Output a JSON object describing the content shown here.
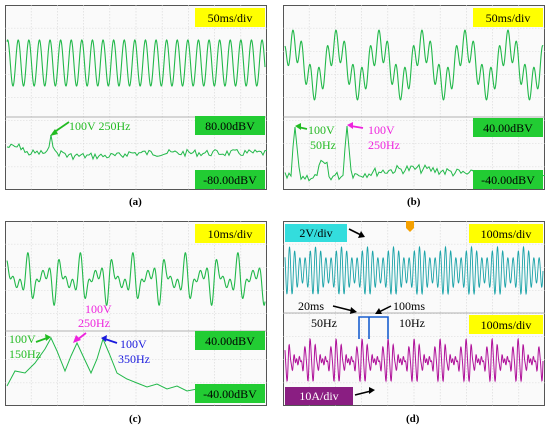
{
  "colors": {
    "trace_green": "#22b84a",
    "trace_cyan": "#1aa3a8",
    "trace_magenta": "#b0139a",
    "label_yellow": "#ffff00",
    "label_green": "#22cc33",
    "label_cyan": "#33dddd",
    "label_purple": "#8a1e82",
    "arrow_green": "#22bb22",
    "arrow_magenta": "#ee22dd",
    "arrow_blue": "#1a1add",
    "grid_color": "#d6d6d6",
    "panel_bg": "#fafafa",
    "panel_border": "#555555",
    "scale_marker": "#f5a000"
  },
  "panels": [
    {
      "caption": "(a)",
      "top_scale": "50ms/div",
      "bottom_scale": "80.00dBV",
      "bottom_offset": "-80.00dBV",
      "annotations": [
        {
          "text": "100V 250Hz",
          "color": "#22bb22"
        }
      ]
    },
    {
      "caption": "(b)",
      "top_scale": "50ms/div",
      "bottom_scale": "40.00dBV",
      "bottom_offset": "-40.00dBV",
      "annotations": [
        {
          "text": "100V",
          "color": "#22bb22"
        },
        {
          "text": "50Hz",
          "color": "#22bb22"
        },
        {
          "text": "100V",
          "color": "#ee22dd"
        },
        {
          "text": "250Hz",
          "color": "#ee22dd"
        }
      ]
    },
    {
      "caption": "(c)",
      "top_scale": "10ms/div",
      "bottom_scale": "40.00dBV",
      "bottom_offset": "-40.00dBV",
      "annotations": [
        {
          "text": "100V",
          "color": "#ee22dd"
        },
        {
          "text": "250Hz",
          "color": "#ee22dd"
        },
        {
          "text": "100V",
          "color": "#22bb22"
        },
        {
          "text": "150Hz",
          "color": "#22bb22"
        },
        {
          "text": "100V",
          "color": "#1a1add"
        },
        {
          "text": "350Hz",
          "color": "#1a1add"
        }
      ]
    },
    {
      "caption": "(d)",
      "top_scale": "100ms/div",
      "bottom_scale": "100ms/div",
      "voltage_scale": "2V/div",
      "current_scale": "10A/div",
      "annotations": [
        {
          "text": "20ms",
          "color": "#000000"
        },
        {
          "text": "100ms",
          "color": "#000000"
        },
        {
          "text": "50Hz",
          "color": "#000000"
        },
        {
          "text": "10Hz",
          "color": "#000000"
        }
      ]
    }
  ],
  "chart_data": [
    {
      "type": "line",
      "panel": "(a)",
      "series": [
        {
          "trace": "time",
          "waveform": "sine",
          "cycles": 24
        },
        {
          "trace": "spectrum",
          "peaks": [
            {
              "frequency_hz": 250,
              "amplitude_v": 100
            }
          ]
        }
      ]
    },
    {
      "type": "line",
      "panel": "(b)",
      "series": [
        {
          "trace": "time",
          "waveform": "sine_plus_harmonic",
          "fundamental_cycles": 6,
          "harmonic_order": 5
        },
        {
          "trace": "spectrum",
          "peaks": [
            {
              "frequency_hz": 50,
              "amplitude_v": 100
            },
            {
              "frequency_hz": 250,
              "amplitude_v": 100
            }
          ]
        }
      ]
    },
    {
      "type": "line",
      "panel": "(c)",
      "series": [
        {
          "trace": "time",
          "waveform": "multi_harmonic",
          "harmonics_hz": [
            150,
            250,
            350
          ]
        },
        {
          "trace": "spectrum",
          "peaks": [
            {
              "frequency_hz": 150,
              "amplitude_v": 100
            },
            {
              "frequency_hz": 250,
              "amplitude_v": 100
            },
            {
              "frequency_hz": 350,
              "amplitude_v": 100
            }
          ]
        }
      ]
    },
    {
      "type": "line",
      "panel": "(d)",
      "series": [
        {
          "trace": "voltage",
          "carrier_hz": 50,
          "modulation_hz": 10
        },
        {
          "trace": "current",
          "carrier_hz": 50,
          "modulation_hz": 10
        }
      ],
      "periods_ms": {
        "carrier": 20,
        "modulation": 100
      }
    }
  ]
}
